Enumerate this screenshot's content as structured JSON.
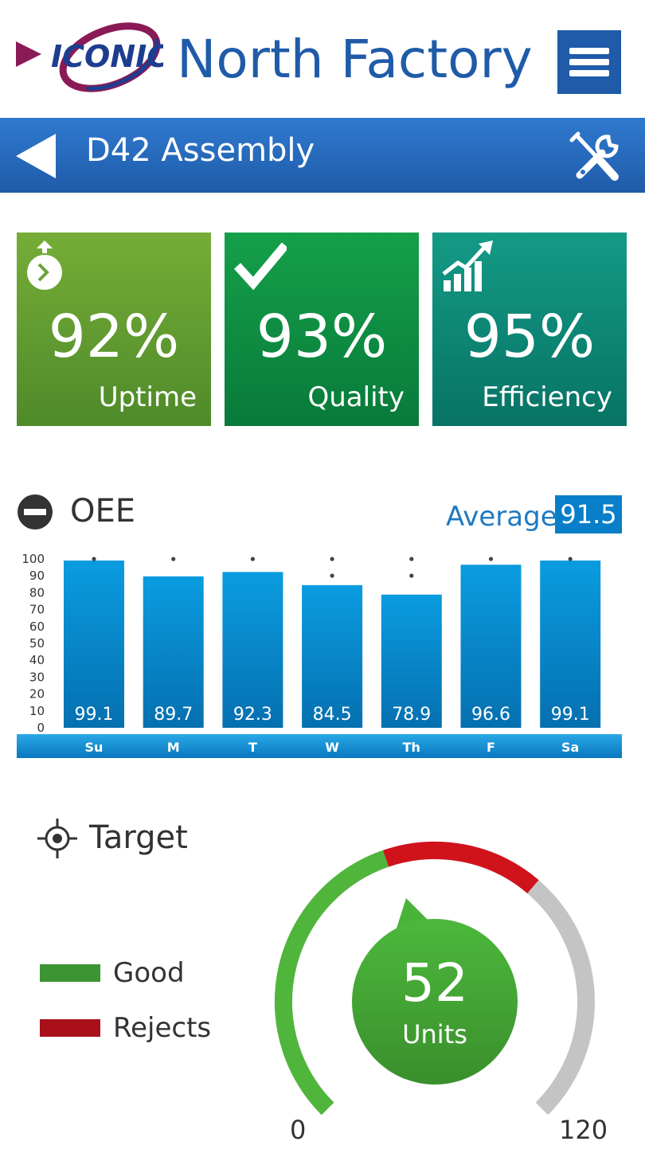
{
  "header": {
    "logo_text": "ICONICS",
    "app_title": "North Factory",
    "menu_icon": "hamburger-menu-icon"
  },
  "nav": {
    "back_icon": "back-arrow-icon",
    "title": "D42 Assembly",
    "tools_icon": "tools-icon"
  },
  "kpis": [
    {
      "label": "Uptime",
      "value": "92%",
      "icon": "stopwatch-icon",
      "color": "#6aa33a"
    },
    {
      "label": "Quality",
      "value": "93%",
      "icon": "checkmark-icon",
      "color": "#0f8f43"
    },
    {
      "label": "Efficiency",
      "value": "95%",
      "icon": "trending-up-icon",
      "color": "#0e8a7a"
    }
  ],
  "oee": {
    "title": "OEE",
    "average_label": "Average",
    "average_value": "91.5"
  },
  "chart_data": {
    "type": "bar",
    "categories": [
      "Su",
      "M",
      "T",
      "W",
      "Th",
      "F",
      "Sa"
    ],
    "values": [
      99.1,
      89.7,
      92.3,
      84.5,
      78.9,
      96.6,
      99.1
    ],
    "value_labels": [
      "99.1",
      "89.7",
      "92.3",
      "84.5",
      "78.9",
      "96.6",
      "99.1"
    ],
    "y_ticks": [
      0,
      10,
      20,
      30,
      40,
      50,
      60,
      70,
      80,
      90,
      100
    ],
    "ylim": [
      0,
      100
    ],
    "bar_color": "#0a8fd6",
    "title": "",
    "xlabel": "",
    "ylabel": ""
  },
  "target": {
    "title": "Target",
    "legend": [
      {
        "label": "Good",
        "color": "#3c9432"
      },
      {
        "label": "Rejects",
        "color": "#aa1019"
      }
    ],
    "gauge": {
      "value": "52",
      "unit": "Units",
      "min": "0",
      "max": "120",
      "good_fraction": 0.43,
      "rejects_fraction": 0.22
    }
  }
}
